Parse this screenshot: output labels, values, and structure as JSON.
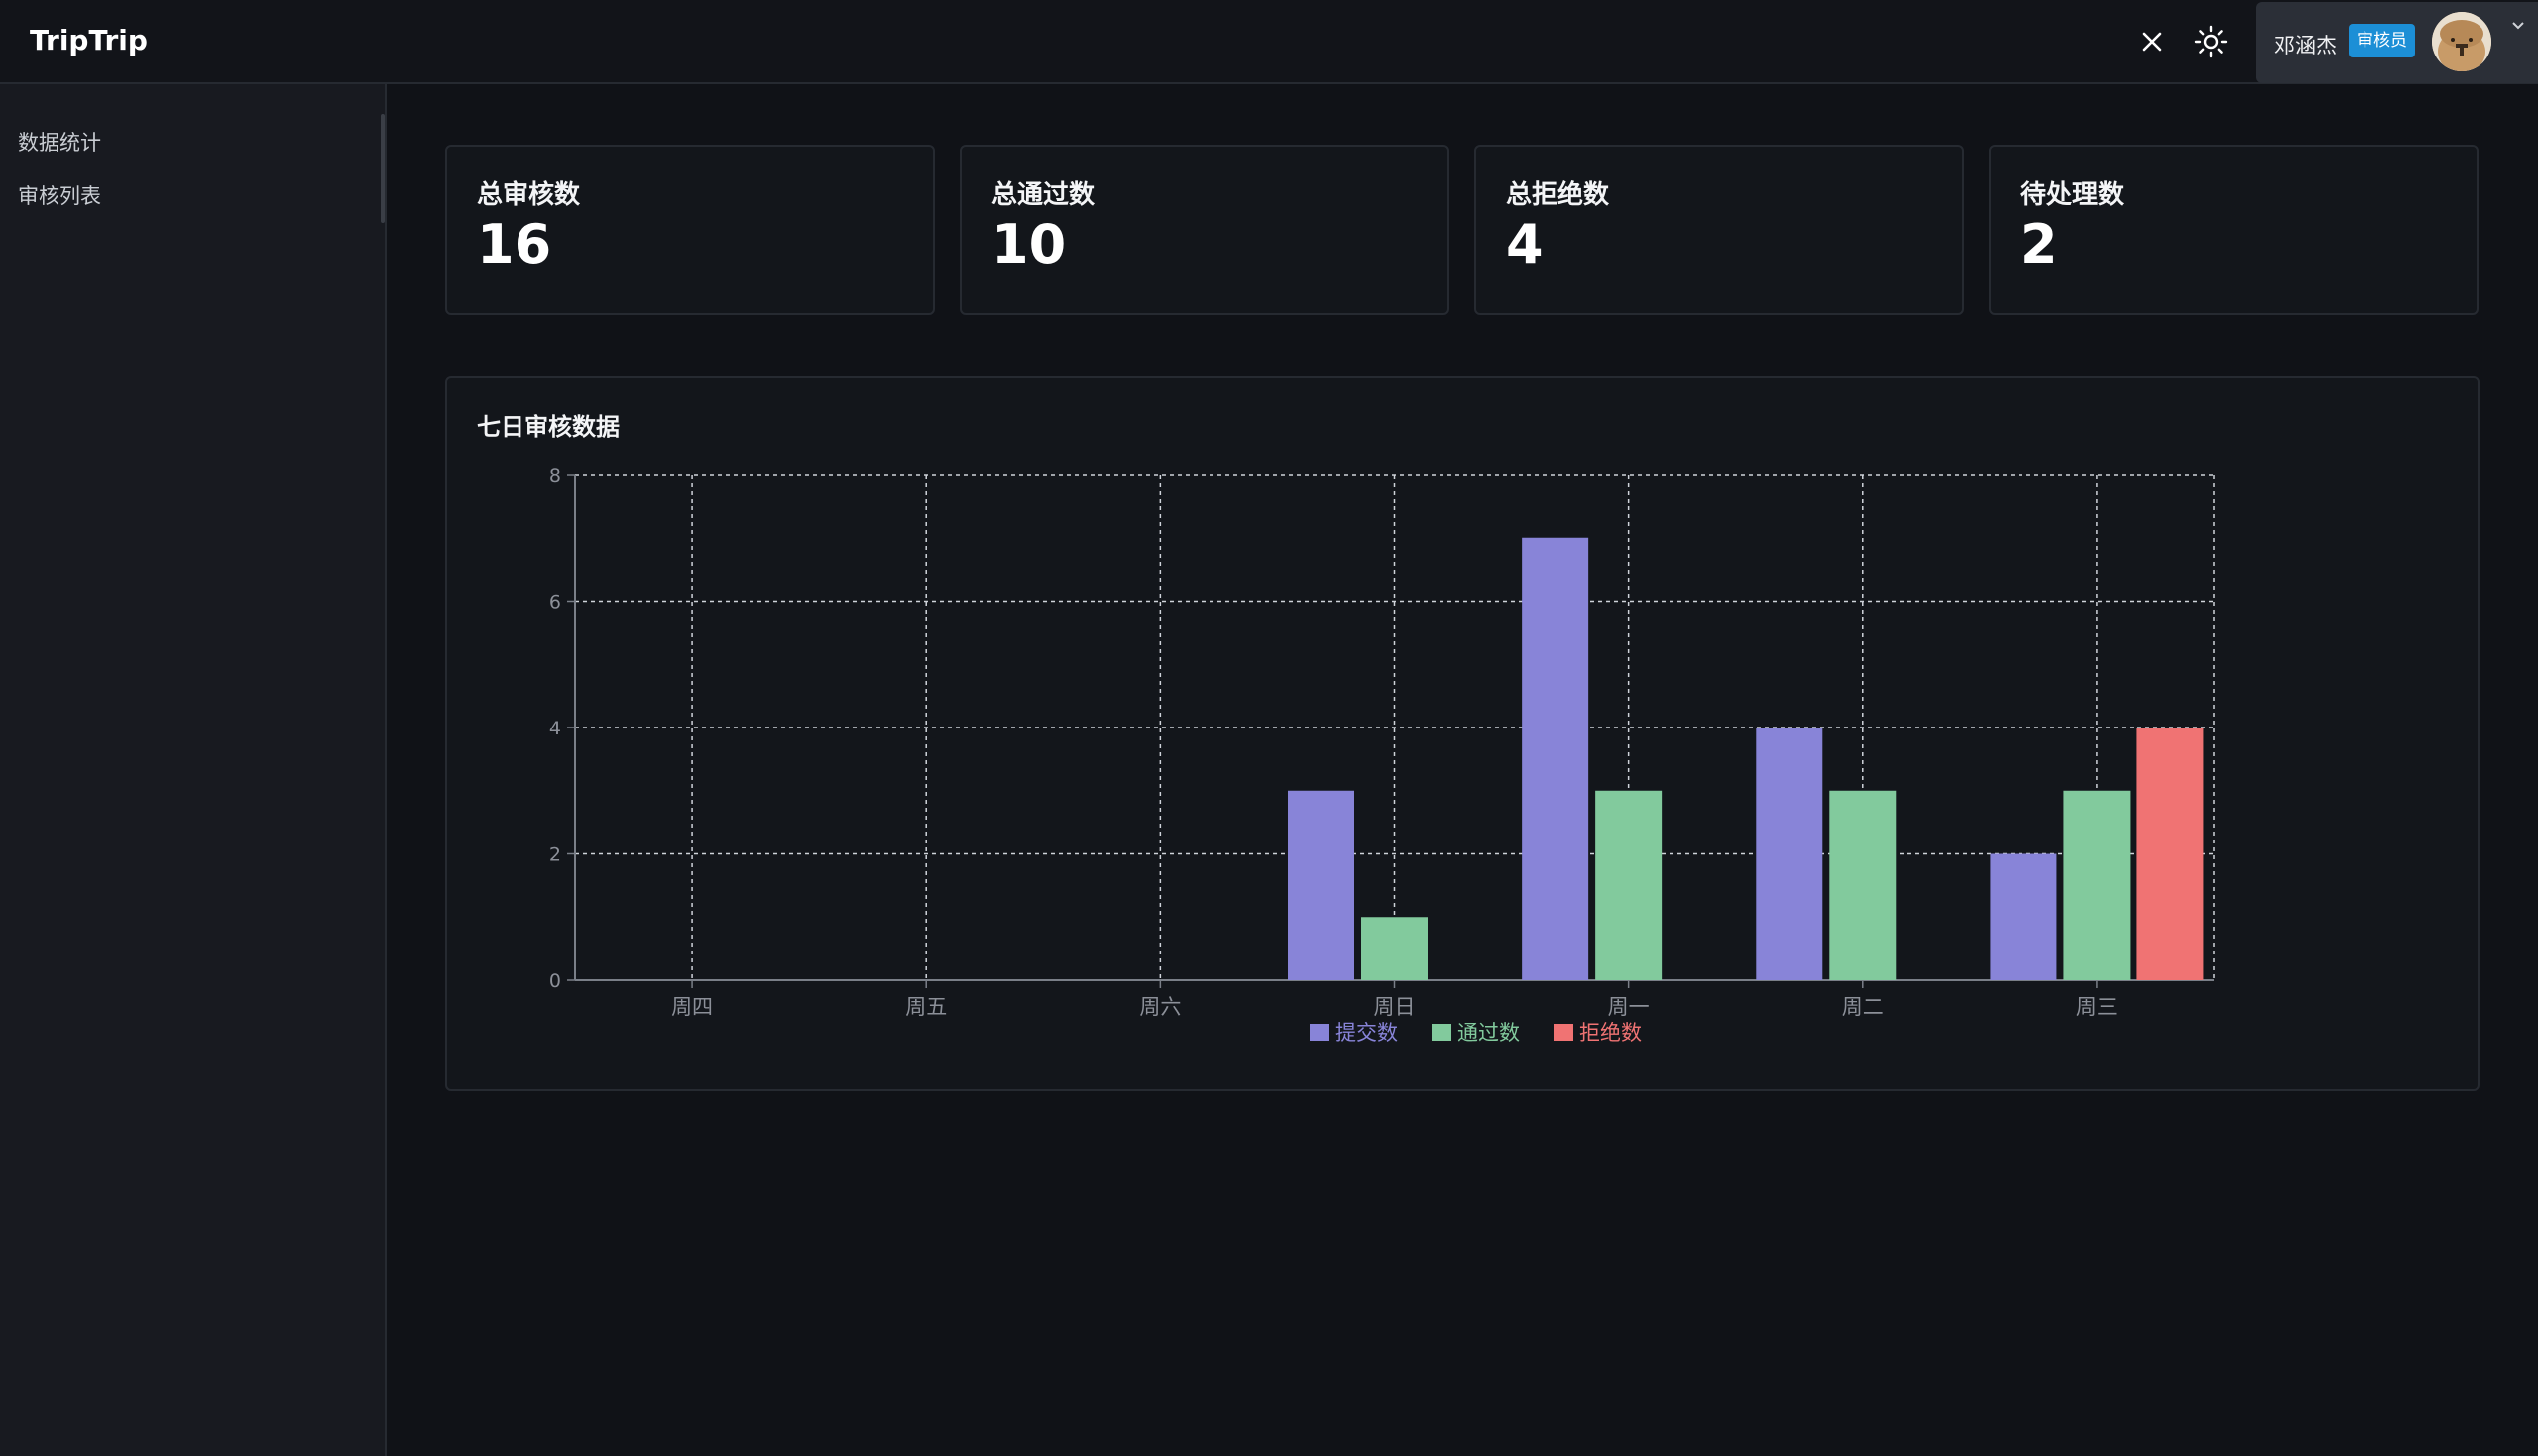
{
  "header": {
    "brand": "TripTrip",
    "user_name": "邓涵杰",
    "role": "审核员"
  },
  "icons": {
    "close": "close-icon",
    "theme": "sun-icon",
    "avatar": "avatar",
    "chevron": "chevron-down-icon"
  },
  "sidebar": {
    "items": [
      {
        "label": "数据统计"
      },
      {
        "label": "审核列表"
      }
    ]
  },
  "stats": [
    {
      "label": "总审核数",
      "value": "16"
    },
    {
      "label": "总通过数",
      "value": "10"
    },
    {
      "label": "总拒绝数",
      "value": "4"
    },
    {
      "label": "待处理数",
      "value": "2"
    }
  ],
  "chart_card": {
    "title": "七日审核数据"
  },
  "colors": {
    "submitted": "#8884d8",
    "approved": "#82ca9d",
    "rejected": "#f07373",
    "role_badge": "#1c8fd6"
  },
  "chart_data": {
    "type": "bar",
    "categories": [
      "周四",
      "周五",
      "周六",
      "周日",
      "周一",
      "周二",
      "周三"
    ],
    "series": [
      {
        "name": "提交数",
        "values": [
          0,
          0,
          0,
          3,
          7,
          4,
          2
        ],
        "color": "#8884d8"
      },
      {
        "name": "通过数",
        "values": [
          0,
          0,
          0,
          1,
          3,
          3,
          3
        ],
        "color": "#82ca9d"
      },
      {
        "name": "拒绝数",
        "values": [
          0,
          0,
          0,
          0,
          0,
          0,
          4
        ],
        "color": "#f07373"
      }
    ],
    "ylim": [
      0,
      8
    ],
    "yticks": [
      0,
      2,
      4,
      6,
      8
    ],
    "grid": true,
    "legend": "bottom"
  }
}
